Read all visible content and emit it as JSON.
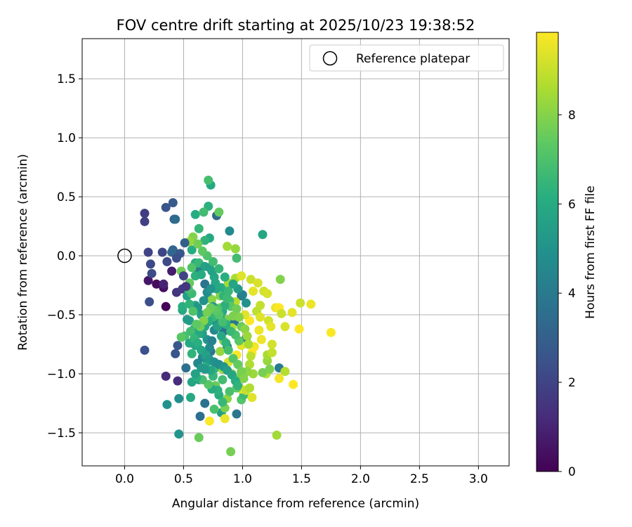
{
  "chart_data": {
    "type": "scatter",
    "title": "FOV centre drift starting at 2025/10/23 19:38:52",
    "xlabel": "Angular distance from reference (arcmin)",
    "ylabel": "Rotation from reference (arcmin)",
    "xlim": [
      -0.36,
      3.26
    ],
    "ylim": [
      -1.78,
      1.84
    ],
    "xticks": [
      0.0,
      0.5,
      1.0,
      1.5,
      2.0,
      2.5,
      3.0
    ],
    "xtick_labels": [
      "0.0",
      "0.5",
      "1.0",
      "1.5",
      "2.0",
      "2.5",
      "3.0"
    ],
    "yticks": [
      -1.5,
      -1.0,
      -0.5,
      0.0,
      0.5,
      1.0,
      1.5
    ],
    "ytick_labels": [
      "−1.5",
      "−1.0",
      "−0.5",
      "0.0",
      "0.5",
      "1.0",
      "1.5"
    ],
    "grid": true,
    "legend": {
      "position": "top-right",
      "entries": [
        "Reference platepar"
      ]
    },
    "reference_point": {
      "x": 0.0,
      "y": 0.0,
      "label": "Reference platepar"
    },
    "colorbar": {
      "label": "Hours from first FF file",
      "range": [
        0,
        9.85
      ],
      "ticks": [
        0,
        2,
        4,
        6,
        8
      ],
      "tick_labels": [
        "0",
        "2",
        "4",
        "6",
        "8"
      ],
      "colormap": "viridis"
    },
    "points": [
      [
        0.35,
        -0.43,
        0.1
      ],
      [
        0.27,
        -0.24,
        0.3
      ],
      [
        0.33,
        -0.27,
        0.4
      ],
      [
        0.2,
        -0.21,
        0.6
      ],
      [
        0.4,
        -0.13,
        0.8
      ],
      [
        0.33,
        -0.24,
        1.0
      ],
      [
        0.35,
        -1.02,
        1.2
      ],
      [
        0.45,
        -1.06,
        1.3
      ],
      [
        0.44,
        -0.31,
        1.5
      ],
      [
        0.49,
        -0.28,
        1.7
      ],
      [
        0.17,
        0.36,
        1.8
      ],
      [
        0.17,
        0.29,
        1.9
      ],
      [
        0.2,
        0.03,
        2.0
      ],
      [
        0.32,
        0.03,
        2.1
      ],
      [
        0.36,
        -0.05,
        2.2
      ],
      [
        0.22,
        -0.07,
        2.2
      ],
      [
        0.23,
        -0.15,
        2.3
      ],
      [
        0.21,
        -0.39,
        2.4
      ],
      [
        0.17,
        -0.8,
        2.5
      ],
      [
        0.43,
        -0.83,
        2.6
      ],
      [
        0.45,
        -0.76,
        2.7
      ],
      [
        0.35,
        0.41,
        2.6
      ],
      [
        0.41,
        0.45,
        2.8
      ],
      [
        0.42,
        0.31,
        3.0
      ],
      [
        0.41,
        0.05,
        3.2
      ],
      [
        0.4,
        0.03,
        3.3
      ],
      [
        0.43,
        0.31,
        3.5
      ],
      [
        0.52,
        -0.95,
        3.6
      ],
      [
        0.46,
        -1.21,
        4.8
      ],
      [
        0.36,
        -1.26,
        5.0
      ],
      [
        0.46,
        -1.51,
        5.1
      ],
      [
        0.56,
        -1.2,
        6.0
      ],
      [
        0.68,
        -0.24,
        3.8
      ],
      [
        0.68,
        -1.25,
        3.7
      ],
      [
        0.64,
        -1.36,
        3.6
      ],
      [
        0.78,
        0.34,
        3.4
      ],
      [
        0.73,
        -0.81,
        3.9
      ],
      [
        0.84,
        -0.64,
        3.7
      ],
      [
        0.93,
        -0.56,
        3.9
      ],
      [
        0.87,
        -0.77,
        3.8
      ],
      [
        0.99,
        -0.34,
        4.0
      ],
      [
        0.95,
        -1.34,
        3.9
      ],
      [
        1.31,
        -0.95,
        4.1
      ],
      [
        1.03,
        -0.7,
        4.5
      ],
      [
        0.62,
        -0.12,
        4.2
      ],
      [
        0.72,
        -0.36,
        4.4
      ],
      [
        0.89,
        0.21,
        4.7
      ],
      [
        1.17,
        0.18,
        5.8
      ],
      [
        0.73,
        0.6,
        6.0
      ],
      [
        0.71,
        0.64,
        6.9
      ],
      [
        0.71,
        0.42,
        6.3
      ],
      [
        0.8,
        0.37,
        7.5
      ],
      [
        0.6,
        0.35,
        6.1
      ],
      [
        0.72,
        0.15,
        5.9
      ],
      [
        0.68,
        0.13,
        6.4
      ],
      [
        0.57,
        0.05,
        6.1
      ],
      [
        0.6,
        -0.06,
        6.2
      ],
      [
        0.63,
        0.23,
        6.5
      ],
      [
        0.67,
        0.37,
        6.8
      ],
      [
        0.87,
        0.08,
        8.5
      ],
      [
        0.94,
        0.06,
        8.3
      ],
      [
        0.95,
        -0.02,
        6.8
      ],
      [
        0.76,
        -0.18,
        5.9
      ],
      [
        0.82,
        -0.27,
        6.2
      ],
      [
        0.6,
        -0.42,
        5.5
      ],
      [
        0.53,
        -0.34,
        5.6
      ],
      [
        0.55,
        -0.55,
        5.6
      ],
      [
        0.59,
        -0.62,
        5.5
      ],
      [
        0.51,
        -0.68,
        7.0
      ],
      [
        0.48,
        -0.69,
        7.3
      ],
      [
        0.57,
        -1.07,
        5.8
      ],
      [
        0.63,
        -1.05,
        5.4
      ],
      [
        0.7,
        -0.9,
        6.2
      ],
      [
        0.75,
        -1.02,
        6.5
      ],
      [
        0.77,
        -1.1,
        7.6
      ],
      [
        0.8,
        -1.18,
        6.1
      ],
      [
        0.82,
        -1.33,
        5.6
      ],
      [
        0.76,
        -1.3,
        7.0
      ],
      [
        0.85,
        -1.38,
        9.6
      ],
      [
        0.72,
        -1.4,
        9.8
      ],
      [
        0.9,
        -1.66,
        7.8
      ],
      [
        0.63,
        -1.54,
        7.6
      ],
      [
        0.99,
        -1.22,
        7.2
      ],
      [
        1.01,
        -1.18,
        6.7
      ],
      [
        0.99,
        -1.13,
        9.4
      ],
      [
        1.03,
        -1.14,
        9.0
      ],
      [
        1.06,
        -1.12,
        8.7
      ],
      [
        1.08,
        -1.2,
        9.4
      ],
      [
        1.09,
        -1.0,
        8.4
      ],
      [
        1.2,
        -1.0,
        8.8
      ],
      [
        1.21,
        -0.89,
        8.3
      ],
      [
        1.23,
        -0.96,
        7.9
      ],
      [
        1.17,
        -0.99,
        7.8
      ],
      [
        1.21,
        -0.84,
        8.6
      ],
      [
        1.25,
        -0.82,
        9.0
      ],
      [
        1.25,
        -0.75,
        9.2
      ],
      [
        1.16,
        -0.71,
        9.6
      ],
      [
        1.1,
        -0.77,
        9.7
      ],
      [
        1.08,
        -0.82,
        9.9
      ],
      [
        0.99,
        -0.76,
        9.5
      ],
      [
        0.95,
        -0.84,
        9.8
      ],
      [
        0.88,
        -0.9,
        9.3
      ],
      [
        0.83,
        -0.96,
        8.4
      ],
      [
        0.81,
        -0.81,
        8.3
      ],
      [
        0.84,
        -0.72,
        8.0
      ],
      [
        0.86,
        -0.54,
        7.9
      ],
      [
        0.81,
        -0.44,
        8.2
      ],
      [
        0.74,
        -0.37,
        8.1
      ],
      [
        0.81,
        -0.34,
        8.0
      ],
      [
        0.88,
        -0.23,
        8.5
      ],
      [
        0.94,
        -0.19,
        8.6
      ],
      [
        0.99,
        -0.17,
        9.4
      ],
      [
        1.07,
        -0.2,
        9.1
      ],
      [
        1.09,
        -0.3,
        9.5
      ],
      [
        1.13,
        -0.23,
        9.3
      ],
      [
        1.18,
        -0.3,
        9.2
      ],
      [
        1.21,
        -0.32,
        9.3
      ],
      [
        1.15,
        -0.42,
        9.0
      ],
      [
        1.12,
        -0.47,
        8.9
      ],
      [
        1.15,
        -0.52,
        9.4
      ],
      [
        1.22,
        -0.55,
        9.2
      ],
      [
        1.24,
        -0.6,
        9.5
      ],
      [
        1.28,
        -0.44,
        9.6
      ],
      [
        1.31,
        -0.44,
        9.9
      ],
      [
        1.33,
        -0.49,
        9.1
      ],
      [
        1.36,
        -0.6,
        9.3
      ],
      [
        1.42,
        -0.48,
        9.5
      ],
      [
        1.49,
        -0.4,
        9.1
      ],
      [
        1.58,
        -0.41,
        9.6
      ],
      [
        1.75,
        -0.65,
        9.8
      ],
      [
        1.48,
        -0.62,
        9.9
      ],
      [
        1.36,
        -0.98,
        8.8
      ],
      [
        1.31,
        -1.04,
        9.7
      ],
      [
        1.43,
        -1.09,
        9.9
      ],
      [
        1.29,
        -1.52,
        8.5
      ],
      [
        1.32,
        -0.2,
        8.0
      ],
      [
        1.14,
        -0.63,
        9.6
      ],
      [
        1.06,
        -0.55,
        9.9
      ],
      [
        1.02,
        -0.5,
        9.4
      ],
      [
        0.94,
        -0.39,
        8.8
      ],
      [
        0.91,
        -0.61,
        8.7
      ],
      [
        0.91,
        -1.0,
        8.1
      ],
      [
        0.95,
        -1.06,
        7.8
      ],
      [
        0.87,
        -1.21,
        8.2
      ],
      [
        0.85,
        -1.29,
        7.9
      ],
      [
        0.83,
        -1.05,
        6.8
      ],
      [
        0.76,
        -0.96,
        6.6
      ],
      [
        0.73,
        -0.97,
        5.8
      ],
      [
        0.68,
        -0.96,
        5.3
      ],
      [
        0.62,
        -0.91,
        4.6
      ],
      [
        0.66,
        -0.86,
        4.4
      ],
      [
        0.7,
        -0.71,
        5.1
      ],
      [
        0.66,
        -0.66,
        5.5
      ],
      [
        0.63,
        -0.66,
        6.0
      ],
      [
        0.6,
        -0.76,
        5.8
      ],
      [
        0.55,
        -0.74,
        5.9
      ],
      [
        0.57,
        -0.83,
        6.4
      ],
      [
        0.53,
        -0.54,
        5.4
      ],
      [
        0.49,
        -0.46,
        6.0
      ],
      [
        0.49,
        -0.43,
        6.2
      ],
      [
        0.55,
        -0.41,
        6.4
      ],
      [
        0.57,
        -0.32,
        6.7
      ],
      [
        0.54,
        -0.28,
        6.9
      ],
      [
        0.55,
        -0.23,
        7.5
      ],
      [
        0.48,
        -0.13,
        7.7
      ],
      [
        0.57,
        -0.1,
        7.1
      ],
      [
        0.63,
        -0.06,
        6.6
      ],
      [
        0.6,
        -0.17,
        6.3
      ],
      [
        0.65,
        -0.16,
        6.1
      ],
      [
        0.68,
        -0.09,
        5.7
      ],
      [
        0.72,
        -0.1,
        5.5
      ],
      [
        0.74,
        -0.13,
        5.7
      ],
      [
        0.77,
        -0.23,
        5.9
      ],
      [
        0.78,
        -0.28,
        6.0
      ],
      [
        0.84,
        -0.34,
        6.4
      ],
      [
        0.88,
        -0.3,
        6.6
      ],
      [
        0.89,
        -0.38,
        6.8
      ],
      [
        0.9,
        -0.43,
        7.3
      ],
      [
        0.95,
        -0.45,
        7.7
      ],
      [
        0.92,
        -0.51,
        7.9
      ],
      [
        0.97,
        -0.52,
        8.0
      ],
      [
        0.99,
        -0.6,
        7.6
      ],
      [
        1.02,
        -0.62,
        8.1
      ],
      [
        1.04,
        -0.68,
        8.4
      ],
      [
        1.05,
        -0.75,
        8.6
      ],
      [
        1.07,
        -0.85,
        8.9
      ],
      [
        1.06,
        -0.92,
        8.7
      ],
      [
        1.04,
        -0.98,
        8.2
      ],
      [
        0.98,
        -1.03,
        7.9
      ],
      [
        0.95,
        -1.12,
        7.4
      ],
      [
        0.89,
        -1.15,
        7.0
      ],
      [
        0.83,
        -1.24,
        6.6
      ],
      [
        0.79,
        -1.14,
        6.3
      ],
      [
        0.74,
        -1.13,
        6.1
      ],
      [
        0.71,
        -1.09,
        7.3
      ],
      [
        0.66,
        -1.05,
        6.9
      ],
      [
        0.61,
        -1.03,
        6.2
      ],
      [
        0.6,
        -1.0,
        5.7
      ],
      [
        0.65,
        -0.95,
        5.3
      ],
      [
        0.68,
        -0.86,
        5.0
      ],
      [
        0.72,
        -0.78,
        4.7
      ],
      [
        0.74,
        -0.72,
        4.4
      ],
      [
        0.76,
        -0.63,
        4.6
      ],
      [
        0.78,
        -0.57,
        5.0
      ],
      [
        0.81,
        -0.52,
        5.6
      ],
      [
        0.83,
        -0.47,
        6.0
      ],
      [
        0.85,
        -0.42,
        6.3
      ],
      [
        0.87,
        -0.36,
        6.7
      ],
      [
        0.79,
        -0.45,
        7.1
      ],
      [
        0.75,
        -0.52,
        6.5
      ],
      [
        0.71,
        -0.56,
        6.2
      ],
      [
        0.68,
        -0.6,
        5.9
      ],
      [
        0.65,
        -0.5,
        5.6
      ],
      [
        0.62,
        -0.44,
        5.2
      ],
      [
        0.67,
        -0.38,
        5.0
      ],
      [
        0.7,
        -0.31,
        4.8
      ],
      [
        0.73,
        -0.28,
        5.1
      ],
      [
        0.75,
        -0.43,
        5.4
      ],
      [
        0.79,
        -0.6,
        5.7
      ],
      [
        0.82,
        -0.68,
        6.0
      ],
      [
        0.86,
        -0.74,
        6.4
      ],
      [
        0.88,
        -0.8,
        6.8
      ],
      [
        0.92,
        -0.87,
        7.2
      ],
      [
        0.96,
        -0.92,
        7.5
      ],
      [
        0.99,
        -0.98,
        7.8
      ],
      [
        1.01,
        -1.04,
        8.0
      ],
      [
        0.97,
        -0.72,
        7.3
      ],
      [
        0.94,
        -0.67,
        7.0
      ],
      [
        0.9,
        -0.64,
        6.6
      ],
      [
        0.86,
        -0.58,
        6.3
      ],
      [
        0.83,
        -0.56,
        6.9
      ],
      [
        0.8,
        -0.5,
        7.2
      ],
      [
        0.77,
        -0.46,
        7.4
      ],
      [
        0.73,
        -0.44,
        7.6
      ],
      [
        0.7,
        -0.48,
        7.8
      ],
      [
        0.67,
        -0.55,
        8.0
      ],
      [
        0.64,
        -0.6,
        7.7
      ],
      [
        0.61,
        -0.58,
        7.4
      ],
      [
        0.58,
        -0.47,
        7.1
      ],
      [
        0.56,
        -0.64,
        6.8
      ],
      [
        0.59,
        -0.7,
        6.5
      ],
      [
        0.62,
        -0.74,
        6.2
      ],
      [
        0.65,
        -0.8,
        5.9
      ],
      [
        0.69,
        -0.84,
        5.6
      ],
      [
        0.72,
        -0.88,
        5.3
      ],
      [
        0.76,
        -0.9,
        5.0
      ],
      [
        0.8,
        -0.92,
        4.8
      ],
      [
        0.84,
        -0.94,
        5.2
      ],
      [
        0.87,
        -0.97,
        5.5
      ],
      [
        0.91,
        -1.01,
        5.8
      ],
      [
        0.94,
        -1.06,
        6.1
      ],
      [
        0.96,
        -1.1,
        6.4
      ],
      [
        1.0,
        -0.33,
        4.3
      ],
      [
        1.03,
        -0.4,
        5.0
      ],
      [
        0.96,
        -0.28,
        5.4
      ],
      [
        0.92,
        -0.24,
        5.8
      ],
      [
        0.85,
        -0.18,
        6.2
      ],
      [
        0.8,
        -0.11,
        6.5
      ],
      [
        0.75,
        -0.05,
        6.8
      ],
      [
        0.7,
        0.0,
        7.1
      ],
      [
        0.66,
        0.04,
        7.4
      ],
      [
        0.62,
        0.1,
        7.7
      ],
      [
        0.58,
        0.16,
        8.0
      ],
      [
        0.55,
        0.12,
        8.3
      ],
      [
        0.51,
        0.11,
        3.0
      ],
      [
        0.47,
        0.02,
        2.7
      ],
      [
        0.44,
        -0.02,
        2.4
      ],
      [
        0.5,
        -0.17,
        2.0
      ],
      [
        0.52,
        -0.26,
        1.6
      ]
    ]
  }
}
